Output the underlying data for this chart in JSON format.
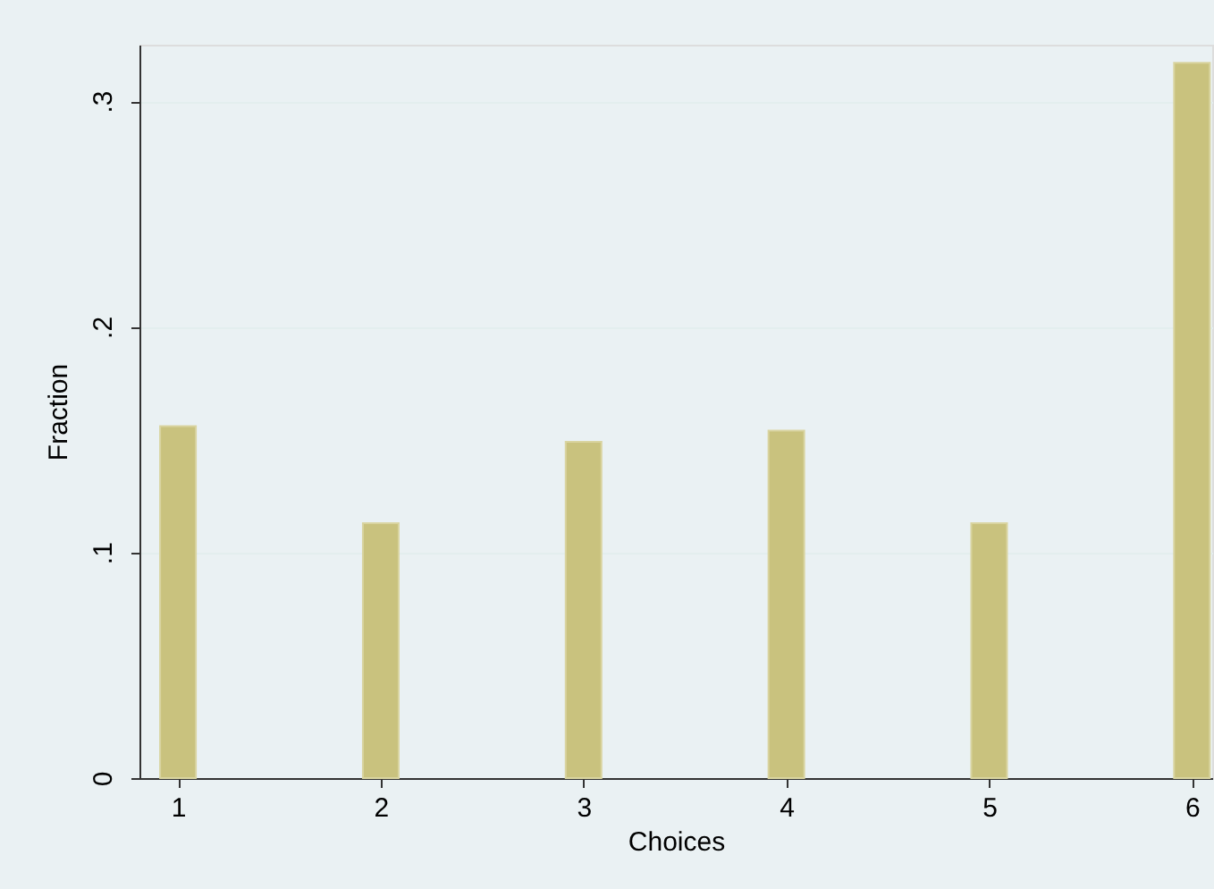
{
  "chart_data": {
    "type": "bar",
    "xlabel": "Choices",
    "ylabel": "Fraction",
    "x": [
      1,
      2,
      3,
      4,
      5,
      6
    ],
    "values": [
      0.156,
      0.113,
      0.149,
      0.154,
      0.113,
      0.317
    ],
    "color": "#c9c27e",
    "xlim": [
      0.81,
      6.1
    ],
    "xticks": [
      1,
      2,
      3,
      4,
      5,
      6
    ],
    "ylim": [
      0,
      0.325
    ],
    "yticks": [
      0,
      {
        "value": 0.1,
        "label": ".1"
      },
      {
        "value": 0.2,
        "label": ".2"
      },
      {
        "value": 0.3,
        "label": ".3"
      }
    ],
    "grid": "y"
  }
}
